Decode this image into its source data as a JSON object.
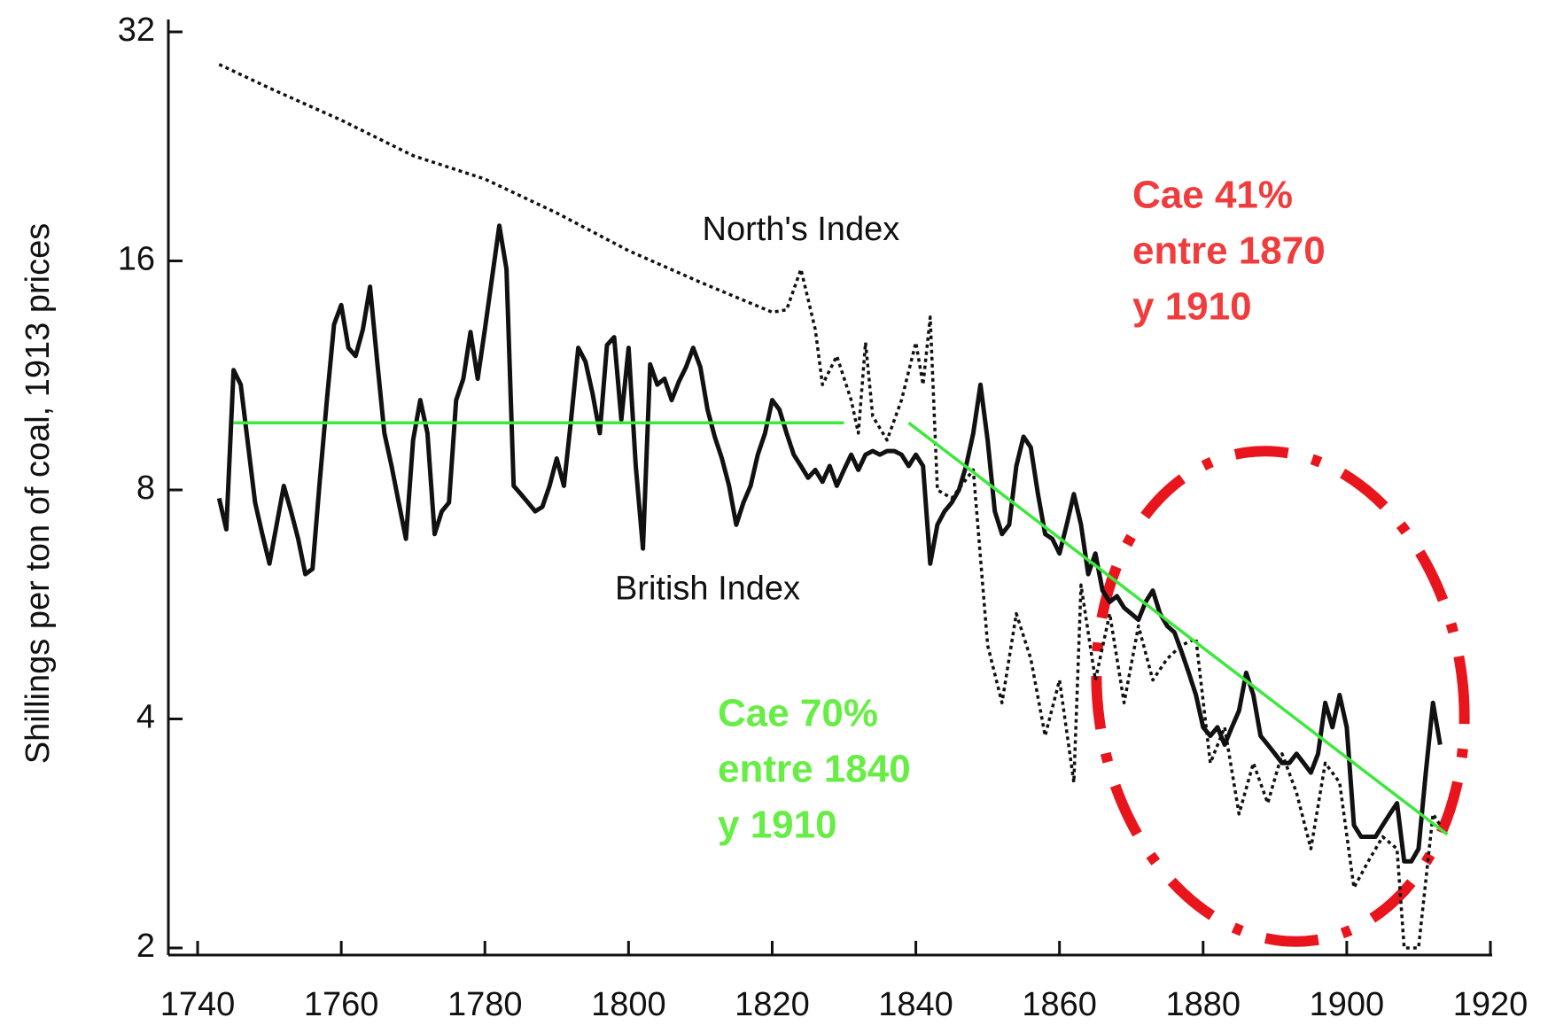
{
  "chart_data": {
    "type": "line",
    "ylabel": "Shillings per ton of coal, 1913 prices",
    "log_scale_y": true,
    "xlim": [
      1735,
      1920
    ],
    "xticks": [
      1740,
      1760,
      1780,
      1800,
      1820,
      1840,
      1860,
      1880,
      1900,
      1920
    ],
    "ylim": [
      2,
      32
    ],
    "yticks": [
      2,
      4,
      8,
      16,
      32
    ],
    "series": [
      {
        "name": "British Index",
        "color": "#111111",
        "style": "solid",
        "x": [
          1743,
          1744,
          1745,
          1746,
          1747,
          1748,
          1749,
          1750,
          1751,
          1752,
          1753,
          1754,
          1755,
          1756,
          1757,
          1758,
          1759,
          1760,
          1761,
          1762,
          1763,
          1764,
          1765,
          1766,
          1767,
          1768,
          1769,
          1770,
          1771,
          1772,
          1773,
          1774,
          1775,
          1776,
          1777,
          1778,
          1779,
          1780,
          1781,
          1782,
          1783,
          1784,
          1785,
          1786,
          1787,
          1788,
          1789,
          1790,
          1791,
          1792,
          1793,
          1794,
          1795,
          1796,
          1797,
          1798,
          1799,
          1800,
          1801,
          1802,
          1803,
          1804,
          1805,
          1806,
          1807,
          1808,
          1809,
          1810,
          1811,
          1812,
          1813,
          1814,
          1815,
          1816,
          1817,
          1818,
          1819,
          1820,
          1821,
          1822,
          1823,
          1824,
          1825,
          1826,
          1827,
          1828,
          1829,
          1830,
          1831,
          1832,
          1833,
          1834,
          1835,
          1836,
          1837,
          1838,
          1839,
          1840,
          1841,
          1842,
          1843,
          1844,
          1845,
          1846,
          1847,
          1848,
          1849,
          1850,
          1851,
          1852,
          1853,
          1854,
          1855,
          1856,
          1857,
          1858,
          1859,
          1860,
          1861,
          1862,
          1863,
          1864,
          1865,
          1866,
          1867,
          1868,
          1869,
          1870,
          1871,
          1872,
          1873,
          1874,
          1875,
          1876,
          1877,
          1878,
          1879,
          1880,
          1881,
          1882,
          1883,
          1884,
          1885,
          1886,
          1887,
          1888,
          1889,
          1890,
          1891,
          1892,
          1893,
          1894,
          1895,
          1896,
          1897,
          1898,
          1899,
          1900,
          1901,
          1902,
          1903,
          1904,
          1905,
          1906,
          1907,
          1908,
          1909,
          1910,
          1911,
          1912,
          1913
        ],
        "values": [
          7.8,
          7.1,
          11.5,
          11,
          9.2,
          7.7,
          7.0,
          6.4,
          7.2,
          8.1,
          7.5,
          6.9,
          6.2,
          6.3,
          8.2,
          10.5,
          13.2,
          14,
          12.3,
          12,
          13,
          14.8,
          11.8,
          9.5,
          8.6,
          7.7,
          6.9,
          9.3,
          10.5,
          9.5,
          7.0,
          7.5,
          7.7,
          10.5,
          11.2,
          12.9,
          11.2,
          13,
          15.2,
          17.8,
          15.6,
          8.1,
          7.9,
          7.7,
          7.5,
          7.6,
          8.1,
          8.8,
          8.1,
          9.9,
          12.3,
          11.8,
          10.7,
          9.5,
          12.4,
          12.7,
          9.9,
          12.3,
          8.6,
          6.7,
          11.7,
          11,
          11.2,
          10.5,
          11.1,
          11.6,
          12.3,
          11.6,
          10.2,
          9.4,
          8.8,
          8.1,
          7.2,
          7.7,
          8.1,
          8.9,
          9.5,
          10.5,
          10.2,
          9.5,
          8.9,
          8.6,
          8.3,
          8.5,
          8.2,
          8.6,
          8.1,
          8.5,
          8.9,
          8.5,
          8.9,
          9.0,
          8.9,
          9.0,
          9.0,
          8.9,
          8.6,
          8.9,
          8.6,
          6.4,
          7.2,
          7.5,
          7.7,
          8.0,
          8.6,
          9.5,
          11,
          9.3,
          7.5,
          7.0,
          7.2,
          8.6,
          9.4,
          9.1,
          7.9,
          7.0,
          6.9,
          6.6,
          7.2,
          7.9,
          7.2,
          6.2,
          6.6,
          5.9,
          5.7,
          5.8,
          5.6,
          5.5,
          5.4,
          5.7,
          5.9,
          5.5,
          5.3,
          5.2,
          4.9,
          4.6,
          4.3,
          3.9,
          3.8,
          3.9,
          3.7,
          3.9,
          4.1,
          4.6,
          4.3,
          3.8,
          3.7,
          3.6,
          3.5,
          3.5,
          3.6,
          3.5,
          3.4,
          3.6,
          4.2,
          3.9,
          4.3,
          3.9,
          2.9,
          2.8,
          2.8,
          2.8,
          2.9,
          3.0,
          3.1,
          2.6,
          2.6,
          2.7,
          3.4,
          4.2,
          3.7
        ]
      },
      {
        "name": "North's Index",
        "color": "#111111",
        "style": "dotted",
        "x": [
          1743,
          1750,
          1760,
          1770,
          1780,
          1790,
          1800,
          1810,
          1820,
          1822,
          1824,
          1826,
          1827,
          1829,
          1831,
          1832,
          1833,
          1834,
          1836,
          1838,
          1840,
          1841,
          1842,
          1843,
          1845,
          1848,
          1850,
          1852,
          1854,
          1856,
          1858,
          1860,
          1862,
          1863,
          1865,
          1867,
          1869,
          1871,
          1873,
          1875,
          1877,
          1879,
          1881,
          1883,
          1885,
          1887,
          1889,
          1891,
          1893,
          1895,
          1897,
          1899,
          1901,
          1903,
          1905,
          1907,
          1908,
          1910,
          1912,
          1913
        ],
        "values": [
          29,
          27,
          24.5,
          22,
          20.5,
          18.5,
          16.5,
          15,
          13.7,
          13.8,
          15.6,
          13,
          11,
          12,
          10.5,
          9.5,
          12.5,
          10,
          9.3,
          10.5,
          12.5,
          11,
          13.5,
          8,
          7.8,
          8.5,
          5,
          4.2,
          5.5,
          4.8,
          3.8,
          4.5,
          3.3,
          6,
          4.5,
          5.5,
          4.2,
          5.3,
          4.5,
          4.8,
          5.0,
          5.1,
          3.5,
          3.9,
          3.0,
          3.5,
          3.1,
          3.6,
          3.2,
          2.7,
          3.5,
          3.3,
          2.4,
          2.6,
          2.8,
          2.7,
          2.0,
          2.0,
          3.0,
          2.9
        ]
      }
    ],
    "trend_lines": [
      {
        "color": "#3de83d",
        "x": [
          1745,
          1830
        ],
        "values": [
          9.8,
          9.8
        ]
      },
      {
        "color": "#3de83d",
        "x": [
          1839,
          1914
        ],
        "values": [
          9.8,
          2.82
        ]
      }
    ],
    "annotations": [
      {
        "text": "North's Index",
        "x": 1824,
        "y": 17.5,
        "color": "#111111"
      },
      {
        "text": "British Index",
        "x": 1811,
        "y": 5.9,
        "color": "#111111"
      }
    ],
    "callouts": [
      {
        "color": "#f03c3c",
        "lines": [
          "Cae 41%",
          "entre 1870",
          "y 1910"
        ]
      },
      {
        "color": "#66ee44",
        "lines": [
          "Cae 70%",
          "entre 1840",
          "y 1910"
        ]
      }
    ]
  }
}
